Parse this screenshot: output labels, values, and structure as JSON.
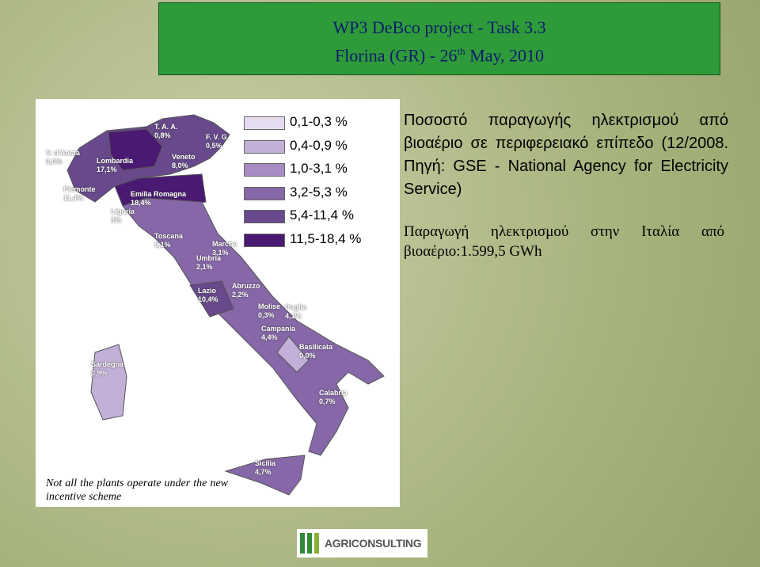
{
  "header": {
    "title_line1": "WP3 DeBco project - Task 3.3",
    "title_line2_start": "Florina (GR) - 26",
    "title_line2_sup": "th",
    "title_line2_end": "May, 2010"
  },
  "legend": [
    {
      "label": "0,1-0,3 %",
      "color": "#e6dcef"
    },
    {
      "label": "0,4-0,9 %",
      "color": "#c3b0d8"
    },
    {
      "label": "1,0-3,1 %",
      "color": "#a58cc3"
    },
    {
      "label": "3,2-5,3 %",
      "color": "#8667a8"
    },
    {
      "label": "5,4-11,4 %",
      "color": "#67498c"
    },
    {
      "label": "11,5-18,4 %",
      "color": "#4a1a72"
    }
  ],
  "regions": [
    {
      "name": "V. d'Aosta",
      "value": "0,0%"
    },
    {
      "name": "Lombardia",
      "value": "17,1%"
    },
    {
      "name": "T. A. A.",
      "value": "0,8%"
    },
    {
      "name": "F. V. G.",
      "value": "0,5%"
    },
    {
      "name": "Veneto",
      "value": "8,0%"
    },
    {
      "name": "Piemonte",
      "value": "11,4%"
    },
    {
      "name": "Emilia Romagna",
      "value": "18,4%"
    },
    {
      "name": "Liguria",
      "value": "3%"
    },
    {
      "name": "Toscana",
      "value": "5,1%"
    },
    {
      "name": "Marche",
      "value": "3,1%"
    },
    {
      "name": "Umbria",
      "value": "2,1%"
    },
    {
      "name": "Lazio",
      "value": "10,4%"
    },
    {
      "name": "Abruzzo",
      "value": "2,2%"
    },
    {
      "name": "Molise",
      "value": "0,3%"
    },
    {
      "name": "Puglia",
      "value": "4,1%"
    },
    {
      "name": "Campania",
      "value": "4,4%"
    },
    {
      "name": "Basilicata",
      "value": "0,0%"
    },
    {
      "name": "Calabria",
      "value": "0,7%"
    },
    {
      "name": "Sardegna",
      "value": "0,9%"
    },
    {
      "name": "Sicilia",
      "value": "4,7%"
    }
  ],
  "text": {
    "paragraph1": "Ποσοστό παραγωγής ηλεκτρισμού από βιοαέριο σε περιφερειακό επίπεδο (12/2008. Πηγή: GSE - National Agency for Electricity Service)",
    "paragraph2": "Παραγωγή ηλεκτρισμού στην Ιταλία από βιοαέριο:1.599,5 GWh"
  },
  "note": "Not all the plants operate under the new incentive scheme",
  "logo": "AGRICONSULTING"
}
